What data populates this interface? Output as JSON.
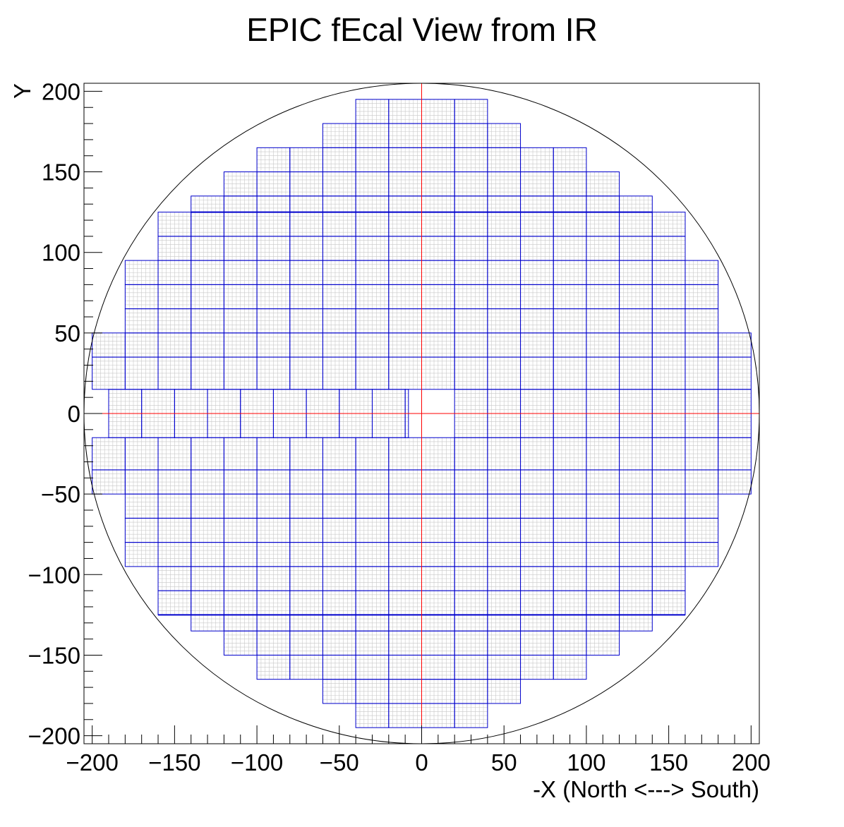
{
  "chart_data": {
    "type": "scatter",
    "title": "EPIC fEcal View from IR",
    "xlabel": "-X (North <---> South)",
    "ylabel": "Y",
    "xlim": [
      -205,
      205
    ],
    "ylim": [
      -205,
      205
    ],
    "x_ticks": [
      -200,
      -150,
      -100,
      -50,
      0,
      50,
      100,
      150,
      200
    ],
    "x_tick_labels": [
      "−200",
      "−150",
      "−100",
      "−50",
      "0",
      "50",
      "100",
      "150",
      "200"
    ],
    "y_ticks": [
      -200,
      -150,
      -100,
      -50,
      0,
      50,
      100,
      150,
      200
    ],
    "y_tick_labels": [
      "−200",
      "−150",
      "−100",
      "−50",
      "0",
      "50",
      "100",
      "150",
      "200"
    ],
    "grid": false,
    "legend": "none",
    "outer_circle_radius": 205,
    "beam_hole": {
      "x": [
        0,
        20
      ],
      "y": [
        -15,
        15
      ]
    },
    "block_size": [
      20,
      30
    ],
    "module_rows": [
      {
        "y": [
          180,
          195
        ],
        "x": [
          -40,
          40
        ]
      },
      {
        "y": [
          165,
          180
        ],
        "x": [
          -60,
          60
        ]
      },
      {
        "y": [
          150,
          165
        ],
        "x": [
          -100,
          100
        ]
      },
      {
        "y": [
          135,
          150
        ],
        "x": [
          -120,
          120
        ]
      },
      {
        "y": [
          125,
          135
        ],
        "x": [
          -140,
          140
        ]
      },
      {
        "y": [
          110,
          125
        ],
        "x": [
          -160,
          160
        ]
      },
      {
        "y": [
          95,
          110
        ],
        "x": [
          -160,
          160
        ]
      },
      {
        "y": [
          80,
          95
        ],
        "x": [
          -180,
          180
        ]
      },
      {
        "y": [
          65,
          80
        ],
        "x": [
          -180,
          180
        ]
      },
      {
        "y": [
          50,
          65
        ],
        "x": [
          -180,
          180
        ]
      },
      {
        "y": [
          35,
          50
        ],
        "x": [
          -200,
          200
        ]
      },
      {
        "y": [
          15,
          35
        ],
        "x": [
          -200,
          200
        ]
      },
      {
        "y": [
          -15,
          15
        ],
        "x": [
          -190,
          -8
        ]
      },
      {
        "y": [
          -15,
          15
        ],
        "x": [
          20,
          200
        ]
      },
      {
        "y": [
          -35,
          -15
        ],
        "x": [
          -200,
          200
        ]
      },
      {
        "y": [
          -50,
          -35
        ],
        "x": [
          -200,
          200
        ]
      },
      {
        "y": [
          -65,
          -50
        ],
        "x": [
          -180,
          180
        ]
      },
      {
        "y": [
          -80,
          -65
        ],
        "x": [
          -180,
          180
        ]
      },
      {
        "y": [
          -95,
          -80
        ],
        "x": [
          -180,
          180
        ]
      },
      {
        "y": [
          -110,
          -95
        ],
        "x": [
          -160,
          160
        ]
      },
      {
        "y": [
          -125,
          -110
        ],
        "x": [
          -160,
          160
        ]
      },
      {
        "y": [
          -135,
          -125
        ],
        "x": [
          -140,
          140
        ]
      },
      {
        "y": [
          -150,
          -135
        ],
        "x": [
          -120,
          120
        ]
      },
      {
        "y": [
          -165,
          -150
        ],
        "x": [
          -100,
          100
        ]
      },
      {
        "y": [
          -180,
          -165
        ],
        "x": [
          -60,
          60
        ]
      },
      {
        "y": [
          -195,
          -180
        ],
        "x": [
          -40,
          40
        ]
      }
    ],
    "colors": {
      "module_outline": "#0000cc",
      "cell_grid": "#c8c8c8",
      "axis_line": "#ff0000",
      "circle": "#000000",
      "frame": "#000000"
    }
  }
}
